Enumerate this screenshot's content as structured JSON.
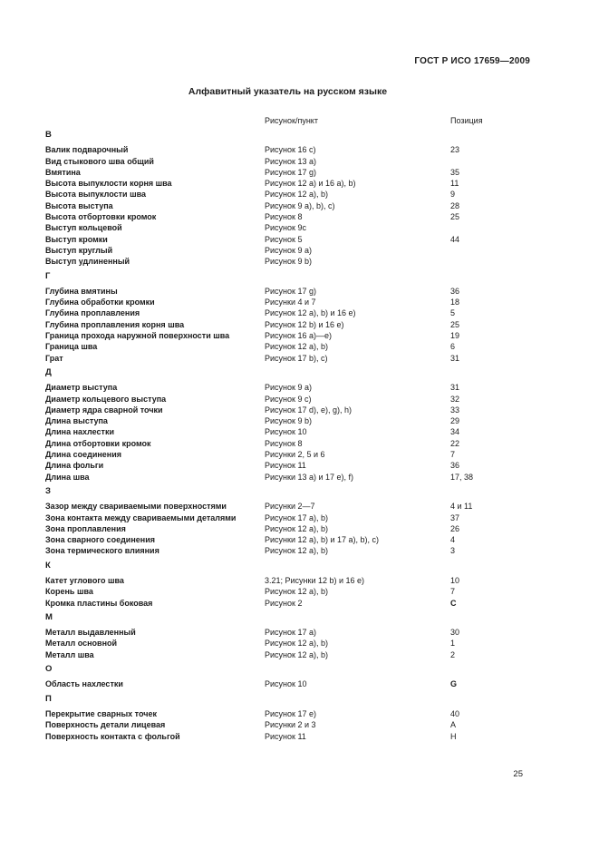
{
  "header": {
    "doc_number": "ГОСТ Р ИСО 17659—2009"
  },
  "title": "Алфавитный указатель на русском языке",
  "columns": {
    "figure": "Рисунок/пункт",
    "position": "Позиция"
  },
  "sections": [
    {
      "letter": "В",
      "rows": [
        {
          "term": "Валик подварочный",
          "figure": "Рисунок 16 c)",
          "position": "23"
        },
        {
          "term": "Вид стыкового шва общий",
          "figure": "Рисунок 13 a)",
          "position": ""
        },
        {
          "term": "Вмятина",
          "figure": "Рисунок 17 g)",
          "position": "35"
        },
        {
          "term": "Высота выпуклости корня шва",
          "figure": "Рисунок 12 a) и 16 a), b)",
          "position": "11"
        },
        {
          "term": "Высота выпуклости шва",
          "figure": "Рисунок 12 a), b)",
          "position": "9"
        },
        {
          "term": "Высота выступа",
          "figure": "Рисунок 9 a), b), c)",
          "position": "28"
        },
        {
          "term": "Высота отбортовки кромок",
          "figure": "Рисунок 8",
          "position": "25"
        },
        {
          "term": "Выступ кольцевой",
          "figure": "Рисунок 9c",
          "position": ""
        },
        {
          "term": "Выступ кромки",
          "figure": "Рисунок 5",
          "position": "44"
        },
        {
          "term": "Выступ круглый",
          "figure": "Рисунок 9 a)",
          "position": ""
        },
        {
          "term": "Выступ удлиненный",
          "figure": "Рисунок 9 b)",
          "position": ""
        }
      ]
    },
    {
      "letter": "Г",
      "rows": [
        {
          "term": "Глубина вмятины",
          "figure": "Рисунок 17 g)",
          "position": "36"
        },
        {
          "term": "Глубина обработки кромки",
          "figure": "Рисунки 4 и 7",
          "position": "18"
        },
        {
          "term": "Глубина проплавления",
          "figure": "Рисунок 12 a), b) и 16 e)",
          "position": "5"
        },
        {
          "term": "Глубина проплавления корня шва",
          "figure": "Рисунок 12 b) и 16 e)",
          "position": "25"
        },
        {
          "term": "Граница прохода наружной поверхности шва",
          "figure": "Рисунок 16 a)—e)",
          "position": "19"
        },
        {
          "term": "Граница шва",
          "figure": "Рисунок 12 a), b)",
          "position": "6"
        },
        {
          "term": "Грат",
          "figure": "Рисунок 17 b), c)",
          "position": "31"
        }
      ]
    },
    {
      "letter": "Д",
      "rows": [
        {
          "term": "Диаметр выступа",
          "figure": "Рисунок 9 a)",
          "position": "31"
        },
        {
          "term": "Диаметр кольцевого выступа",
          "figure": "Рисунок 9 c)",
          "position": "32"
        },
        {
          "term": "Диаметр ядра сварной точки",
          "figure": "Рисунок 17 d), e), g), h)",
          "position": "33"
        },
        {
          "term": "Длина выступа",
          "figure": "Рисунок 9 b)",
          "position": "29"
        },
        {
          "term": "Длина нахлестки",
          "figure": "Рисунок 10",
          "position": "34"
        },
        {
          "term": "Длина отбортовки кромок",
          "figure": "Рисунок 8",
          "position": "22"
        },
        {
          "term": "Длина соединения",
          "figure": "Рисунки 2, 5 и 6",
          "position": "7"
        },
        {
          "term": "Длина фольги",
          "figure": "Рисунок 11",
          "position": "36"
        },
        {
          "term": "Длина шва",
          "figure": "Рисунки 13 a) и 17 e), f)",
          "position": "17, 38"
        }
      ]
    },
    {
      "letter": "З",
      "rows": [
        {
          "term": "Зазор между свариваемыми поверхностями",
          "figure": "Рисунки 2—7",
          "position": "4 и 11"
        },
        {
          "term": "Зона контакта между свариваемыми деталями",
          "figure": "Рисунок 17 a), b)",
          "position": "37"
        },
        {
          "term": "Зона проплавления",
          "figure": "Рисунок 12 a), b)",
          "position": "26"
        },
        {
          "term": "Зона сварного соединения",
          "figure": "Рисунки 12 a), b) и 17 a), b), c)",
          "position": "4"
        },
        {
          "term": "Зона термического влияния",
          "figure": "Рисунок 12 a), b)",
          "position": "3"
        }
      ]
    },
    {
      "letter": "К",
      "rows": [
        {
          "term": "Катет углового шва",
          "figure": "3.21; Рисунки 12 b) и 16 e)",
          "position": "10"
        },
        {
          "term": "Корень шва",
          "figure": "Рисунок 12 a), b)",
          "position": "7"
        },
        {
          "term": "Кромка пластины боковая",
          "figure": "Рисунок 2",
          "position": "С",
          "position_bold": true
        }
      ]
    },
    {
      "letter": "М",
      "rows": [
        {
          "term": "Металл выдавленный",
          "figure": "Рисунок 17 a)",
          "position": "30"
        },
        {
          "term": "Металл основной",
          "figure": "Рисунок 12 a), b)",
          "position": "1"
        },
        {
          "term": "Металл шва",
          "figure": "Рисунок 12 a), b)",
          "position": "2"
        }
      ]
    },
    {
      "letter": "О",
      "rows": [
        {
          "term": "Область нахлестки",
          "figure": "Рисунок 10",
          "position": "G",
          "position_bold": true
        }
      ]
    },
    {
      "letter": "П",
      "rows": [
        {
          "term": "Перекрытие сварных точек",
          "figure": "Рисунок 17 e)",
          "position": "40"
        },
        {
          "term": "Поверхность детали лицевая",
          "figure": "Рисунки 2 и 3",
          "position": "А"
        },
        {
          "term": "Поверхность контакта с фольгой",
          "figure": "Рисунок 11",
          "position": "Н"
        }
      ]
    }
  ],
  "page_number": "25"
}
